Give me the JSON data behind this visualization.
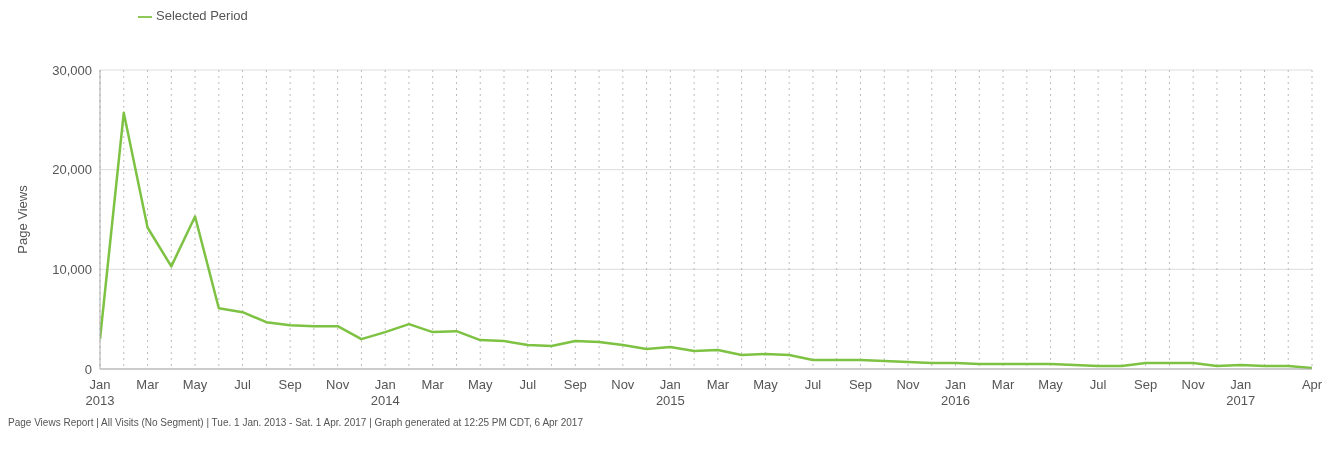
{
  "chart_data": {
    "type": "line",
    "ylabel": "Page Views",
    "categories": [
      "Jan 2013",
      null,
      "Mar",
      null,
      "May",
      null,
      "Jul",
      null,
      "Sep",
      null,
      "Nov",
      null,
      "Jan 2014",
      null,
      "Mar",
      null,
      "May",
      null,
      "Jul",
      null,
      "Sep",
      null,
      "Nov",
      null,
      "Jan 2015",
      null,
      "Mar",
      null,
      "May",
      null,
      "Jul",
      null,
      "Sep",
      null,
      "Nov",
      null,
      "Jan 2016",
      null,
      "Mar",
      null,
      "May",
      null,
      "Jul",
      null,
      "Sep",
      null,
      "Nov",
      null,
      "Jan 2017",
      null,
      null,
      "Apr"
    ],
    "series": [
      {
        "name": "Selected Period",
        "color": "#7dc242",
        "values": [
          3000,
          25700,
          14200,
          10300,
          15300,
          6100,
          5700,
          4700,
          4400,
          4300,
          4300,
          3000,
          3700,
          4500,
          3700,
          3800,
          2900,
          2800,
          2400,
          2300,
          2800,
          2700,
          2400,
          2000,
          2200,
          1800,
          1900,
          1400,
          1500,
          1400,
          900,
          900,
          900,
          800,
          700,
          600,
          600,
          500,
          500,
          500,
          500,
          400,
          300,
          300,
          600,
          600,
          600,
          300,
          400,
          300,
          300,
          100
        ]
      }
    ],
    "ylim": [
      0,
      30000
    ],
    "yticks": [
      {
        "value": 0,
        "label": "0"
      },
      {
        "value": 10000,
        "label": "10,000"
      },
      {
        "value": 20000,
        "label": "20,000"
      },
      {
        "value": 30000,
        "label": "30,000"
      }
    ],
    "grid": true,
    "legend": "top left",
    "marker": "none",
    "line_style": "solid",
    "annotations": [
      "Page Views Report | All Visits (No Segment) | Tue.  1 Jan. 2013 - Sat.  1 Apr. 2017 | Graph generated at 12:25 PM CDT,  6 Apr 2017"
    ]
  }
}
